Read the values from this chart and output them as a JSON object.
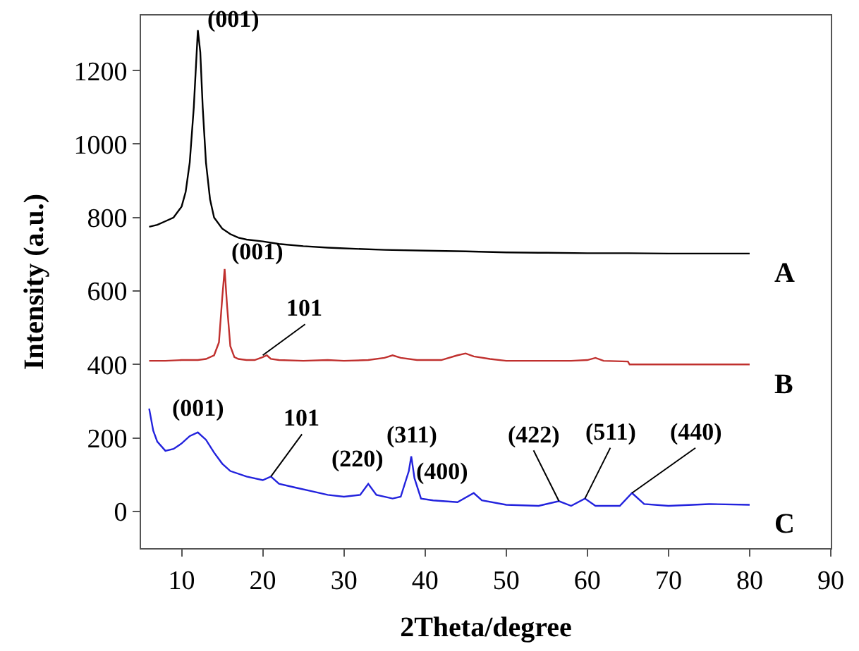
{
  "chart_data": {
    "type": "line",
    "xlabel": "2Theta/degree",
    "ylabel": "Intensity (a.u.)",
    "xlim": [
      5,
      90
    ],
    "xticks": [
      10,
      20,
      30,
      40,
      50,
      60,
      70,
      80,
      90
    ],
    "ylim": [
      -100,
      1350
    ],
    "yticks": [
      0,
      200,
      400,
      600,
      800,
      1000,
      1200
    ],
    "legend": false,
    "marker": "none",
    "line_style": "solid",
    "series": [
      {
        "name": "A",
        "color": "#000000",
        "x": [
          6,
          7,
          8,
          9,
          10,
          10.5,
          11,
          11.5,
          12,
          12.3,
          12.6,
          13,
          13.5,
          14,
          15,
          16,
          17,
          18,
          20,
          22,
          25,
          28,
          30,
          35,
          40,
          45,
          50,
          55,
          60,
          65,
          70,
          75,
          80
        ],
        "values": [
          775,
          780,
          790,
          800,
          830,
          870,
          950,
          1100,
          1310,
          1250,
          1100,
          950,
          850,
          800,
          770,
          755,
          745,
          740,
          735,
          728,
          722,
          718,
          716,
          712,
          710,
          708,
          705,
          704,
          703,
          703,
          702,
          702,
          702
        ]
      },
      {
        "name": "B",
        "color": "#c0302e",
        "x": [
          6,
          8,
          10,
          12,
          13,
          14,
          14.6,
          15,
          15.3,
          15.6,
          16,
          16.5,
          17,
          18,
          19,
          20,
          20.5,
          21,
          22,
          25,
          28,
          30,
          33,
          35,
          36,
          37,
          39,
          42,
          44,
          45,
          46,
          48,
          50,
          55,
          58,
          60,
          61,
          62,
          65,
          65.2,
          80
        ],
        "values": [
          410,
          410,
          412,
          412,
          415,
          425,
          460,
          580,
          660,
          560,
          450,
          420,
          415,
          412,
          412,
          420,
          425,
          415,
          412,
          410,
          412,
          410,
          412,
          418,
          425,
          418,
          412,
          412,
          425,
          430,
          422,
          415,
          410,
          410,
          410,
          412,
          418,
          410,
          408,
          400,
          400
        ]
      },
      {
        "name": "C",
        "color": "#2222dd",
        "x": [
          6,
          6.5,
          7,
          8,
          9,
          10,
          11,
          12,
          13,
          14,
          15,
          16,
          18,
          20,
          21,
          22,
          24,
          26,
          28,
          30,
          32,
          33,
          34,
          36,
          37,
          38,
          38.3,
          38.7,
          39.5,
          41,
          44,
          46,
          47,
          50,
          54,
          56.5,
          58,
          59.7,
          61,
          64,
          65.5,
          67,
          70,
          75,
          80
        ],
        "values": [
          280,
          220,
          190,
          165,
          170,
          185,
          205,
          215,
          195,
          160,
          130,
          110,
          95,
          85,
          95,
          75,
          65,
          55,
          45,
          40,
          45,
          75,
          45,
          35,
          40,
          110,
          150,
          90,
          35,
          30,
          25,
          50,
          30,
          18,
          15,
          28,
          15,
          35,
          15,
          15,
          50,
          20,
          15,
          20,
          18
        ]
      }
    ],
    "annotations": [
      {
        "text": "(001)",
        "x": 12,
        "y": 1310
      },
      {
        "text": "(001)",
        "x": 15.3,
        "y": 660
      },
      {
        "text": "101",
        "x": 20,
        "y": 425
      },
      {
        "text": "(001)",
        "x": 12,
        "y": 215
      },
      {
        "text": "101",
        "x": 21,
        "y": 95
      },
      {
        "text": "(220)",
        "x": 33,
        "y": 75
      },
      {
        "text": "(311)",
        "x": 38.3,
        "y": 150
      },
      {
        "text": "(400)",
        "x": 46,
        "y": 50
      },
      {
        "text": "(422)",
        "x": 56.5,
        "y": 28
      },
      {
        "text": "(511)",
        "x": 59.7,
        "y": 35
      },
      {
        "text": "(440)",
        "x": 65.5,
        "y": 50
      }
    ]
  }
}
